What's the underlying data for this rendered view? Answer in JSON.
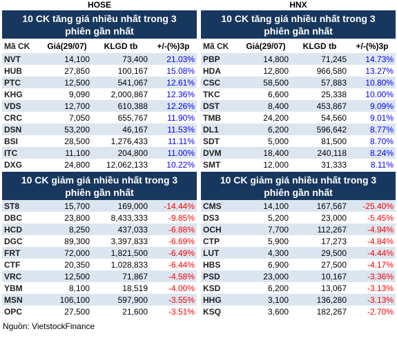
{
  "panels": [
    {
      "exchange": "HOSE",
      "gainers": {
        "title": "10 CK tăng giá nhiều nhất trong 3 phiên gần nhất",
        "header": [
          "Mã CK",
          "Giá(29/07)",
          "KLGD tb",
          "+/-(%)3p"
        ],
        "rows": [
          [
            "NVT",
            "14,100",
            "73,400",
            "21.03%"
          ],
          [
            "HUB",
            "27,850",
            "100,167",
            "15.08%"
          ],
          [
            "PTC",
            "12,500",
            "541,067",
            "12.61%"
          ],
          [
            "KHG",
            "9,090",
            "2,000,867",
            "12.36%"
          ],
          [
            "VDS",
            "12,700",
            "610,388",
            "12.26%"
          ],
          [
            "CRC",
            "7,050",
            "655,767",
            "11.90%"
          ],
          [
            "DSN",
            "53,200",
            "46,167",
            "11.53%"
          ],
          [
            "BSI",
            "28,500",
            "1,276,433",
            "11.11%"
          ],
          [
            "ITC",
            "11,100",
            "204,800",
            "11.00%"
          ],
          [
            "DXG",
            "24,800",
            "12,062,133",
            "10.22%"
          ]
        ]
      },
      "losers": {
        "title": "10 CK giảm giá nhiều nhất trong 3 phiên gần nhất",
        "rows": [
          [
            "ST8",
            "15,700",
            "169,000",
            "-14.44%"
          ],
          [
            "DBC",
            "23,800",
            "8,433,333",
            "-9.85%"
          ],
          [
            "HCD",
            "8,250",
            "437,033",
            "-6.88%"
          ],
          [
            "DGC",
            "89,300",
            "3,397,833",
            "-6.69%"
          ],
          [
            "FRT",
            "72,000",
            "1,821,500",
            "-6.49%"
          ],
          [
            "CTF",
            "20,350",
            "1,028,833",
            "-6.44%"
          ],
          [
            "VRC",
            "12,500",
            "71,867",
            "-4.58%"
          ],
          [
            "YBM",
            "8,100",
            "18,519",
            "-4.00%"
          ],
          [
            "MSN",
            "106,100",
            "597,900",
            "-3.55%"
          ],
          [
            "OPC",
            "27,500",
            "21,600",
            "-3.51%"
          ]
        ]
      }
    },
    {
      "exchange": "HNX",
      "gainers": {
        "title": "10 CK tăng giá nhiều nhất trong 3 phiên gần nhất",
        "header": [
          "Mã CK",
          "Giá(29/07)",
          "KLGD tb",
          "+/-(%)3p"
        ],
        "rows": [
          [
            "PBP",
            "14,800",
            "71,245",
            "14.73%"
          ],
          [
            "HDA",
            "12,800",
            "966,580",
            "13.27%"
          ],
          [
            "CSC",
            "58,500",
            "57,883",
            "10.80%"
          ],
          [
            "TKC",
            "6,600",
            "25,338",
            "10.00%"
          ],
          [
            "DST",
            "8,400",
            "453,867",
            "9.09%"
          ],
          [
            "TMB",
            "24,200",
            "54,560",
            "9.01%"
          ],
          [
            "DL1",
            "6,200",
            "596,642",
            "8.77%"
          ],
          [
            "SDT",
            "5,000",
            "81,500",
            "8.70%"
          ],
          [
            "DVM",
            "18,400",
            "240,118",
            "8.24%"
          ],
          [
            "SMT",
            "12,000",
            "31,333",
            "8.11%"
          ]
        ]
      },
      "losers": {
        "title": "10 CK giảm giá nhiều nhất trong 3 phiên gần nhất",
        "rows": [
          [
            "CMS",
            "14,100",
            "167,567",
            "-25.40%"
          ],
          [
            "DS3",
            "5,200",
            "23,000",
            "-5.45%"
          ],
          [
            "OCH",
            "7,700",
            "112,267",
            "-4.94%"
          ],
          [
            "CTP",
            "5,900",
            "17,273",
            "-4.84%"
          ],
          [
            "LUT",
            "4,300",
            "29,500",
            "-4.44%"
          ],
          [
            "HBS",
            "6,900",
            "27,500",
            "-4.17%"
          ],
          [
            "PSD",
            "23,000",
            "10,167",
            "-3.36%"
          ],
          [
            "KSD",
            "6,200",
            "13,067",
            "-3.13%"
          ],
          [
            "HHG",
            "3,100",
            "136,280",
            "-3.13%"
          ],
          [
            "KSQ",
            "3,600",
            "182,267",
            "-2.70%"
          ]
        ]
      }
    }
  ],
  "source": "Nguồn: VietstockFinance"
}
